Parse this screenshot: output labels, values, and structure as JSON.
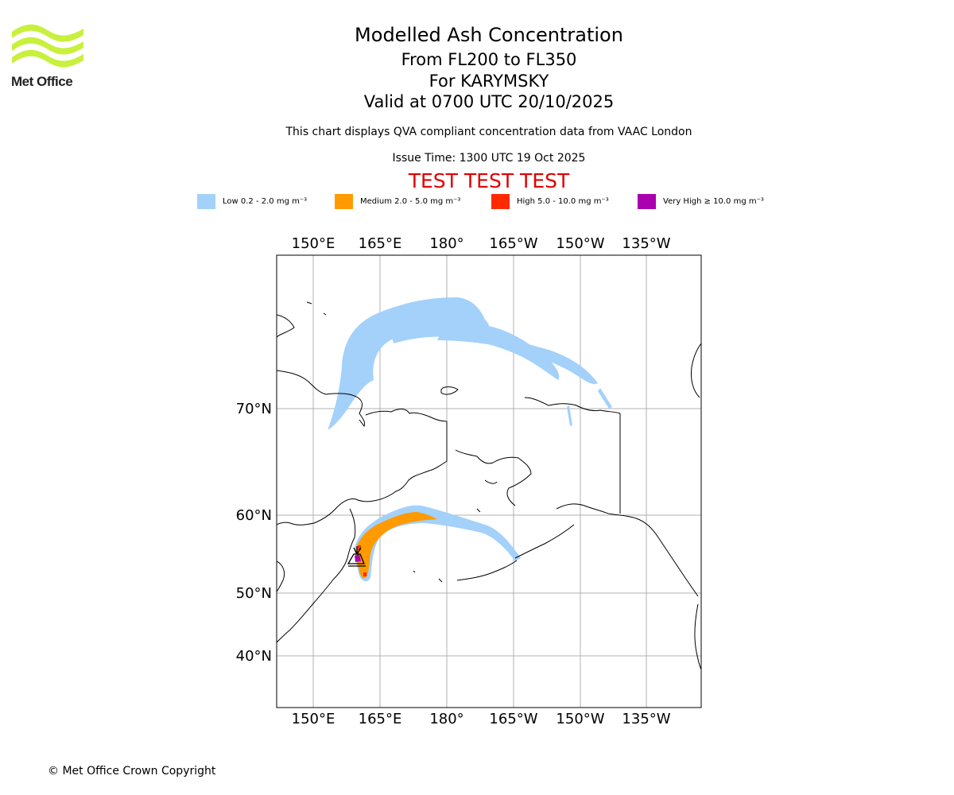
{
  "brand": {
    "logo_text": "Met Office",
    "logo_color": "#c8f03c"
  },
  "header": {
    "title": "Modelled Ash Concentration",
    "level_range": "From FL200 to FL350",
    "volcano": "For KARYMSKY",
    "valid_time": "Valid at 0700 UTC 20/10/2025",
    "description": "This chart displays QVA compliant concentration data from VAAC London",
    "issue_time": "Issue Time: 1300 UTC 19 Oct 2025",
    "test_banner": "TEST TEST TEST",
    "test_color": "#e00000"
  },
  "legend": [
    {
      "label": "Low 0.2 - 2.0 mg m⁻³",
      "color": "#a3d1fa"
    },
    {
      "label": "Medium 2.0 - 5.0 mg m⁻³",
      "color": "#ff9a00"
    },
    {
      "label": "High 5.0 - 10.0 mg m⁻³",
      "color": "#ff2a00"
    },
    {
      "label": "Very High  ≥  10.0 mg m⁻³",
      "color": "#aa00b0"
    }
  ],
  "map": {
    "lon_ticks": [
      "150°E",
      "165°E",
      "180°",
      "165°W",
      "150°W",
      "135°W"
    ],
    "lat_ticks": [
      "70°N",
      "60°N",
      "50°N",
      "40°N"
    ],
    "volcano_marker": "volcano-symbol"
  },
  "footer": {
    "copyright": "© Met Office Crown Copyright"
  }
}
